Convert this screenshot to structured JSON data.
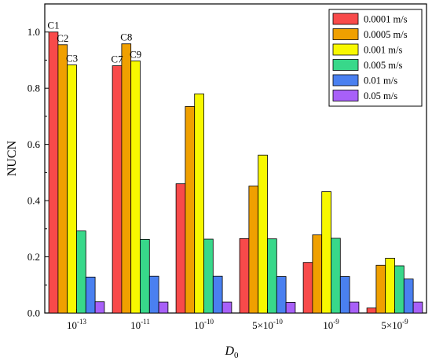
{
  "chart_data": {
    "type": "bar",
    "xlabel": "D",
    "xlabel_sub": "0",
    "ylabel": "NUCN",
    "ylim": [
      0,
      1.1
    ],
    "yticks": [
      "0.0",
      "0.2",
      "0.4",
      "0.6",
      "0.8",
      "1.0"
    ],
    "categories": [
      {
        "base": "10",
        "exp": "-13"
      },
      {
        "base": "10",
        "exp": "-11"
      },
      {
        "base": "10",
        "exp": "-10"
      },
      {
        "base": "5×10",
        "exp": "-10"
      },
      {
        "base": "10",
        "exp": "-9"
      },
      {
        "base": "5×10",
        "exp": "-9"
      }
    ],
    "series": [
      {
        "name": "0.0001 m/s",
        "color": "#f84a4a",
        "values": [
          1.0,
          0.88,
          0.46,
          0.265,
          0.18,
          0.018
        ]
      },
      {
        "name": "0.0005 m/s",
        "color": "#f0a000",
        "values": [
          0.955,
          0.958,
          0.735,
          0.452,
          0.278,
          0.17
        ]
      },
      {
        "name": "0.001 m/s",
        "color": "#f8f800",
        "values": [
          0.883,
          0.897,
          0.78,
          0.562,
          0.432,
          0.195
        ]
      },
      {
        "name": "0.005 m/s",
        "color": "#38d88a",
        "values": [
          0.292,
          0.262,
          0.263,
          0.264,
          0.266,
          0.168
        ]
      },
      {
        "name": "0.01 m/s",
        "color": "#4a80f0",
        "values": [
          0.128,
          0.131,
          0.131,
          0.13,
          0.13,
          0.121
        ]
      },
      {
        "name": "0.05 m/s",
        "color": "#a860f8",
        "values": [
          0.04,
          0.039,
          0.039,
          0.038,
          0.039,
          0.039
        ]
      }
    ],
    "annotations": [
      {
        "text": "C1",
        "category": 0,
        "series": 0
      },
      {
        "text": "C2",
        "category": 0,
        "series": 1
      },
      {
        "text": "C3",
        "category": 0,
        "series": 2
      },
      {
        "text": "C7",
        "category": 1,
        "series": 0
      },
      {
        "text": "C8",
        "category": 1,
        "series": 1
      },
      {
        "text": "C9",
        "category": 1,
        "series": 2
      }
    ],
    "legend_position": "top-right",
    "grid": false
  }
}
